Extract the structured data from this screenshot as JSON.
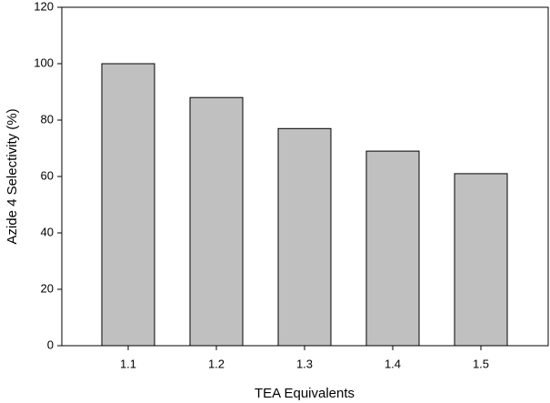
{
  "chart_data": {
    "type": "bar",
    "x_label": "TEA Equivalents",
    "y_label": "Azide 4 Selectivity (%)",
    "categories": [
      "1.1",
      "1.2",
      "1.3",
      "1.4",
      "1.5"
    ],
    "values": [
      100,
      88,
      77,
      69,
      61
    ],
    "color": "#c0c0c0",
    "ylim": [
      0,
      120
    ],
    "yticks": [
      0,
      20,
      40,
      60,
      80,
      100,
      120
    ],
    "grid": false
  }
}
